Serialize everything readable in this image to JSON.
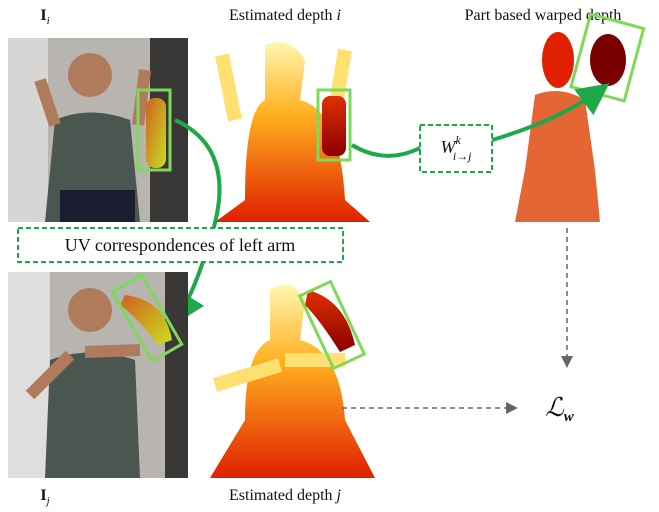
{
  "labels": {
    "top_left": {
      "base": "I",
      "sub": "i"
    },
    "top_middle": {
      "text": "Estimated depth ",
      "var": "i"
    },
    "top_right": "Part based warped depth",
    "uv_box": "UV correspondences of left arm",
    "warp": {
      "base": "W",
      "sup": "k",
      "sub": "i→j"
    },
    "bottom_left": {
      "base": "I",
      "sub": "j"
    },
    "bottom_middle": {
      "text": "Estimated depth ",
      "var": "j"
    },
    "loss": {
      "base": "ℒ",
      "sub": "w"
    }
  }
}
